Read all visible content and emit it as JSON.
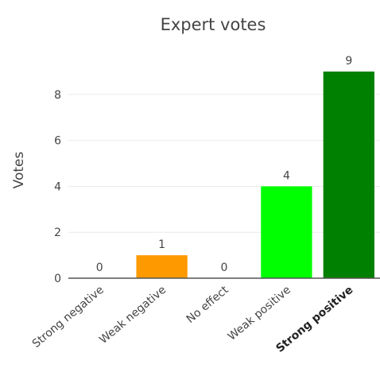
{
  "chart_data": {
    "type": "bar",
    "title": "Expert votes",
    "ylabel": "Votes",
    "xlabel": "",
    "categories": [
      "Strong negative",
      "Weak negative",
      "No effect",
      "Weak positive",
      "Strong positive"
    ],
    "values": [
      0,
      1,
      0,
      4,
      9
    ],
    "colors": [
      "#ff9900",
      "#ff9900",
      "#aaaaaa",
      "#00ff00",
      "#008000"
    ],
    "highlighted_category": "Strong positive",
    "ylim": [
      0,
      9
    ],
    "yticks": [
      0,
      2,
      4,
      6,
      8
    ],
    "grid": true,
    "data_labels": [
      "0",
      "1",
      "0",
      "4",
      "9"
    ]
  }
}
